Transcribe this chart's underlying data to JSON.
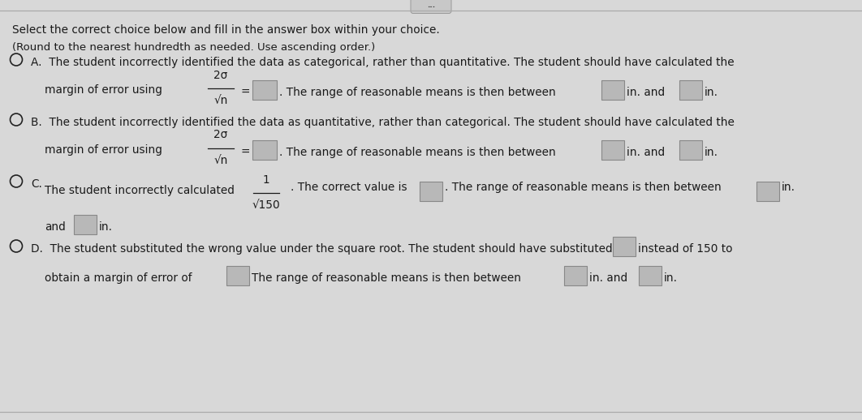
{
  "bg_color": "#d8d8d8",
  "text_color": "#1a1a1a",
  "box_facecolor": "#b8b8b8",
  "box_edgecolor": "#888888",
  "top_line_color": "#aaaaaa",
  "radio_color": "#222222",
  "title1": "Select the correct choice below and fill in the answer box within your choice.",
  "title2": "(Round to the nearest hundredth as needed. Use ascending order.)",
  "optA_text1": "A.  The student incorrectly identified the data as categorical, rather than quantitative. The student should have calculated the",
  "optA_text2_pre": "margin of error using",
  "optA_frac_num": "2σ",
  "optA_frac_den": "√n",
  "optA_text2_post": "=       . The range of reasonable means is then between       in. and       in.",
  "optB_text1": "B.  The student incorrectly identified the data as quantitative, rather than categorical. The student should have calculated the",
  "optB_text2_pre": "margin of error using",
  "optB_frac_num": "2σ",
  "optB_frac_den": "√n",
  "optB_text2_post": "=       . The range of reasonable means is then between       in. and       in.",
  "optC_label": "C.",
  "optC_text2_pre": "The student incorrectly calculated",
  "optC_frac_num": "1",
  "optC_frac_den": "√150",
  "optC_text2_mid": ". The correct value is       . The range of reasonable means is then between       in.",
  "optC_text3": "and       in.",
  "optD_text1": "D.  The student substituted the wrong value under the square root. The student should have substituted       instead of 150 to",
  "optD_text2": "obtain a margin of error of       The range of reasonable means is then between       in. and       in.",
  "dots_text": "..."
}
